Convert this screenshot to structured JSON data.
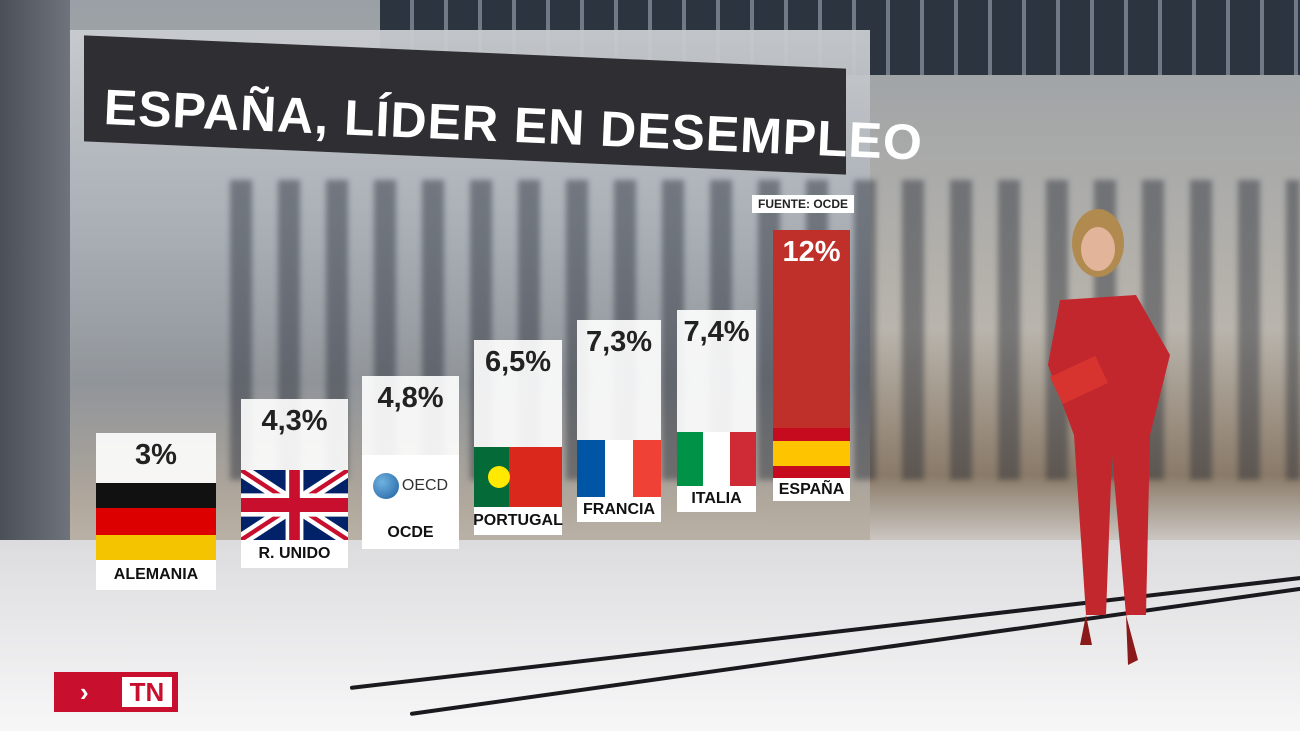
{
  "title": "ESPAÑA, LÍDER EN DESEMPLEO",
  "source": "FUENTE: OCDE",
  "logo": {
    "text": "TN",
    "chevron": "›"
  },
  "chart_data": {
    "type": "bar",
    "title": "ESPAÑA, LÍDER EN DESEMPLEO",
    "categories": [
      "ALEMANIA",
      "R. UNIDO",
      "OCDE",
      "PORTUGAL",
      "FRANCIA",
      "ITALIA",
      "ESPAÑA"
    ],
    "values": [
      3,
      4.3,
      4.8,
      6.5,
      7.3,
      7.4,
      12
    ],
    "labels": [
      "3%",
      "4,3%",
      "4,8%",
      "6,5%",
      "7,3%",
      "7,4%",
      "12%"
    ],
    "unit": "%",
    "highlight_color": "#c0302a",
    "oecd_logo_text": "OECD"
  }
}
